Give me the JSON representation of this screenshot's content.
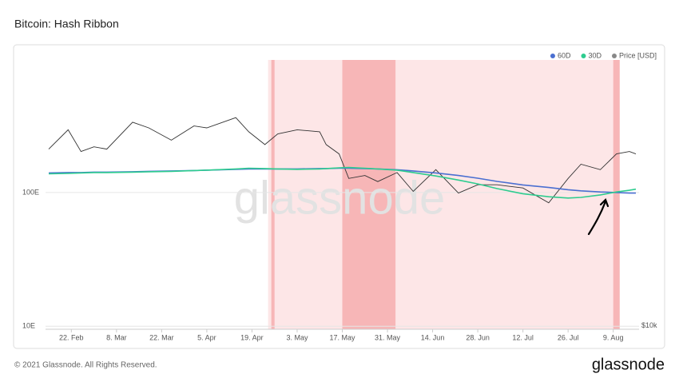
{
  "chart_data": {
    "type": "line",
    "title": "Bitcoin: Hash Ribbon",
    "x": [
      46,
      52,
      56,
      60,
      64,
      72,
      77,
      84,
      91,
      95,
      104,
      108,
      113,
      117,
      123,
      130,
      132,
      136,
      139,
      144,
      148,
      154,
      159,
      166,
      173,
      179,
      185,
      193,
      201,
      207,
      211,
      217,
      222,
      226,
      228
    ],
    "xlim": [
      45,
      229
    ],
    "xticks": [
      {
        "value": 53,
        "label": "22. Feb"
      },
      {
        "value": 67,
        "label": "8. Mar"
      },
      {
        "value": 81,
        "label": "22. Mar"
      },
      {
        "value": 95,
        "label": "5. Apr"
      },
      {
        "value": 109,
        "label": "19. Apr"
      },
      {
        "value": 123,
        "label": "3. May"
      },
      {
        "value": 137,
        "label": "17. May"
      },
      {
        "value": 151,
        "label": "31. May"
      },
      {
        "value": 165,
        "label": "14. Jun"
      },
      {
        "value": 179,
        "label": "28. Jun"
      },
      {
        "value": 193,
        "label": "12. Jul"
      },
      {
        "value": 207,
        "label": "26. Jul"
      },
      {
        "value": 221,
        "label": "9. Aug"
      }
    ],
    "ylim": [
      9.5,
      980
    ],
    "yticks": [
      {
        "value": 10,
        "label": "10E"
      },
      {
        "value": 100,
        "label": "100E"
      }
    ],
    "log_y": true,
    "y2lim": [
      9700,
      106000
    ],
    "y2ticks": [
      {
        "value": 10000,
        "label": "$10k"
      }
    ],
    "log_y2": true,
    "series": [
      {
        "name": "60D",
        "color": "#4a6fd1",
        "values": [
          140,
          141,
          141,
          142,
          142,
          143,
          144,
          145,
          146,
          147,
          149,
          150,
          150,
          150,
          150,
          151,
          151,
          152,
          152,
          151,
          150,
          148,
          145,
          140,
          134,
          128,
          121,
          114,
          109,
          105,
          103,
          101,
          100,
          99,
          99
        ]
      },
      {
        "name": "30D",
        "color": "#2ecc8f",
        "values": [
          138,
          139,
          140,
          141,
          141,
          142,
          143,
          144,
          146,
          147,
          150,
          152,
          151,
          150,
          149,
          150,
          151,
          153,
          154,
          152,
          150,
          147,
          141,
          133,
          124,
          116,
          107,
          98,
          93,
          91,
          92,
          96,
          101,
          104,
          106
        ]
      },
      {
        "name": "Price [USD]",
        "color": "#888888",
        "line_color": "#333333",
        "axis": "y2",
        "values": [
          48000,
          57000,
          47000,
          49000,
          48000,
          61000,
          58000,
          52000,
          59000,
          58000,
          63500,
          56000,
          50000,
          55000,
          57000,
          56000,
          50000,
          46000,
          37000,
          38000,
          36000,
          39000,
          33000,
          40000,
          32500,
          35000,
          35000,
          34000,
          29800,
          37000,
          42000,
          40000,
          46000,
          47000,
          46000
        ]
      }
    ],
    "capitulation": [
      {
        "start": 114,
        "end": 222
      }
    ],
    "capitulation_peaks": [
      {
        "start": 115,
        "end": 116
      },
      {
        "start": 137,
        "end": 153.5
      },
      {
        "start": 221,
        "end": 223
      }
    ],
    "grid": true,
    "legend": "top-right"
  },
  "watermark": "glassnode",
  "footer": "© 2021 Glassnode. All Rights Reserved.",
  "brand": "glassnode"
}
